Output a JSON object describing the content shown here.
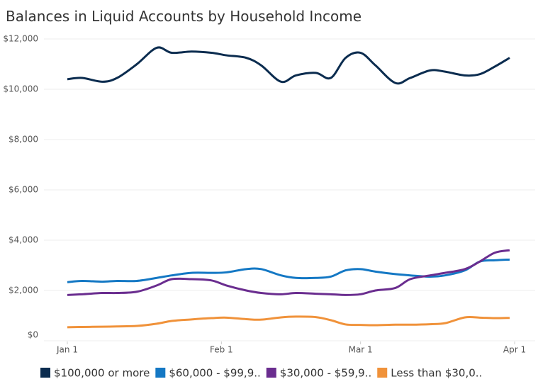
{
  "chart_data": {
    "type": "line",
    "title": "Balances in Liquid Accounts by Household Income",
    "x": [
      0,
      3,
      7,
      10,
      14,
      18,
      21,
      25,
      29,
      32,
      36,
      39,
      43,
      46,
      50,
      53,
      56,
      59,
      62,
      66,
      69,
      73,
      76,
      80,
      83,
      86,
      89
    ],
    "xlim": [
      0,
      90
    ],
    "xticks": [
      {
        "value": 0,
        "label": "Jan 1"
      },
      {
        "value": 31,
        "label": "Feb 1"
      },
      {
        "value": 59,
        "label": "Mar 1"
      },
      {
        "value": 90,
        "label": "Apr 1"
      }
    ],
    "ylim": [
      0,
      12000
    ],
    "yticks": [
      {
        "value": 0,
        "label": "$0"
      },
      {
        "value": 2000,
        "label": "$2,000"
      },
      {
        "value": 4000,
        "label": "$4,000"
      },
      {
        "value": 6000,
        "label": "$6,000"
      },
      {
        "value": 8000,
        "label": "$8,000"
      },
      {
        "value": 10000,
        "label": "$10,000"
      },
      {
        "value": 12000,
        "label": "$12,000"
      }
    ],
    "grid": true,
    "series": [
      {
        "name": "$100,000 or more",
        "color": "#0b2c4f",
        "values": [
          10400,
          10450,
          10300,
          10450,
          11000,
          11650,
          11450,
          11500,
          11450,
          11350,
          11250,
          10950,
          10300,
          10550,
          10650,
          10450,
          11250,
          11450,
          10950,
          10250,
          10450,
          10750,
          10700,
          10550,
          10600,
          10900,
          11250
        ]
      },
      {
        "name": "$60,000 - $99,9..",
        "color": "#1478c4",
        "values": [
          2330,
          2380,
          2350,
          2380,
          2380,
          2500,
          2600,
          2700,
          2700,
          2720,
          2850,
          2850,
          2600,
          2500,
          2500,
          2550,
          2800,
          2850,
          2750,
          2650,
          2600,
          2550,
          2600,
          2800,
          3150,
          3200,
          3230
        ]
      },
      {
        "name": "$30,000 - $59,9..",
        "color": "#6a2d8f",
        "values": [
          1820,
          1850,
          1900,
          1900,
          1950,
          2200,
          2450,
          2450,
          2400,
          2200,
          2000,
          1900,
          1850,
          1900,
          1870,
          1850,
          1820,
          1850,
          2000,
          2100,
          2450,
          2600,
          2700,
          2850,
          3150,
          3500,
          3600
        ]
      },
      {
        "name": "Less than $30,0..",
        "color": "#f0923a",
        "values": [
          540,
          550,
          560,
          570,
          590,
          680,
          790,
          850,
          900,
          920,
          860,
          840,
          930,
          960,
          940,
          820,
          650,
          630,
          620,
          640,
          640,
          660,
          700,
          930,
          920,
          900,
          910
        ]
      }
    ]
  }
}
